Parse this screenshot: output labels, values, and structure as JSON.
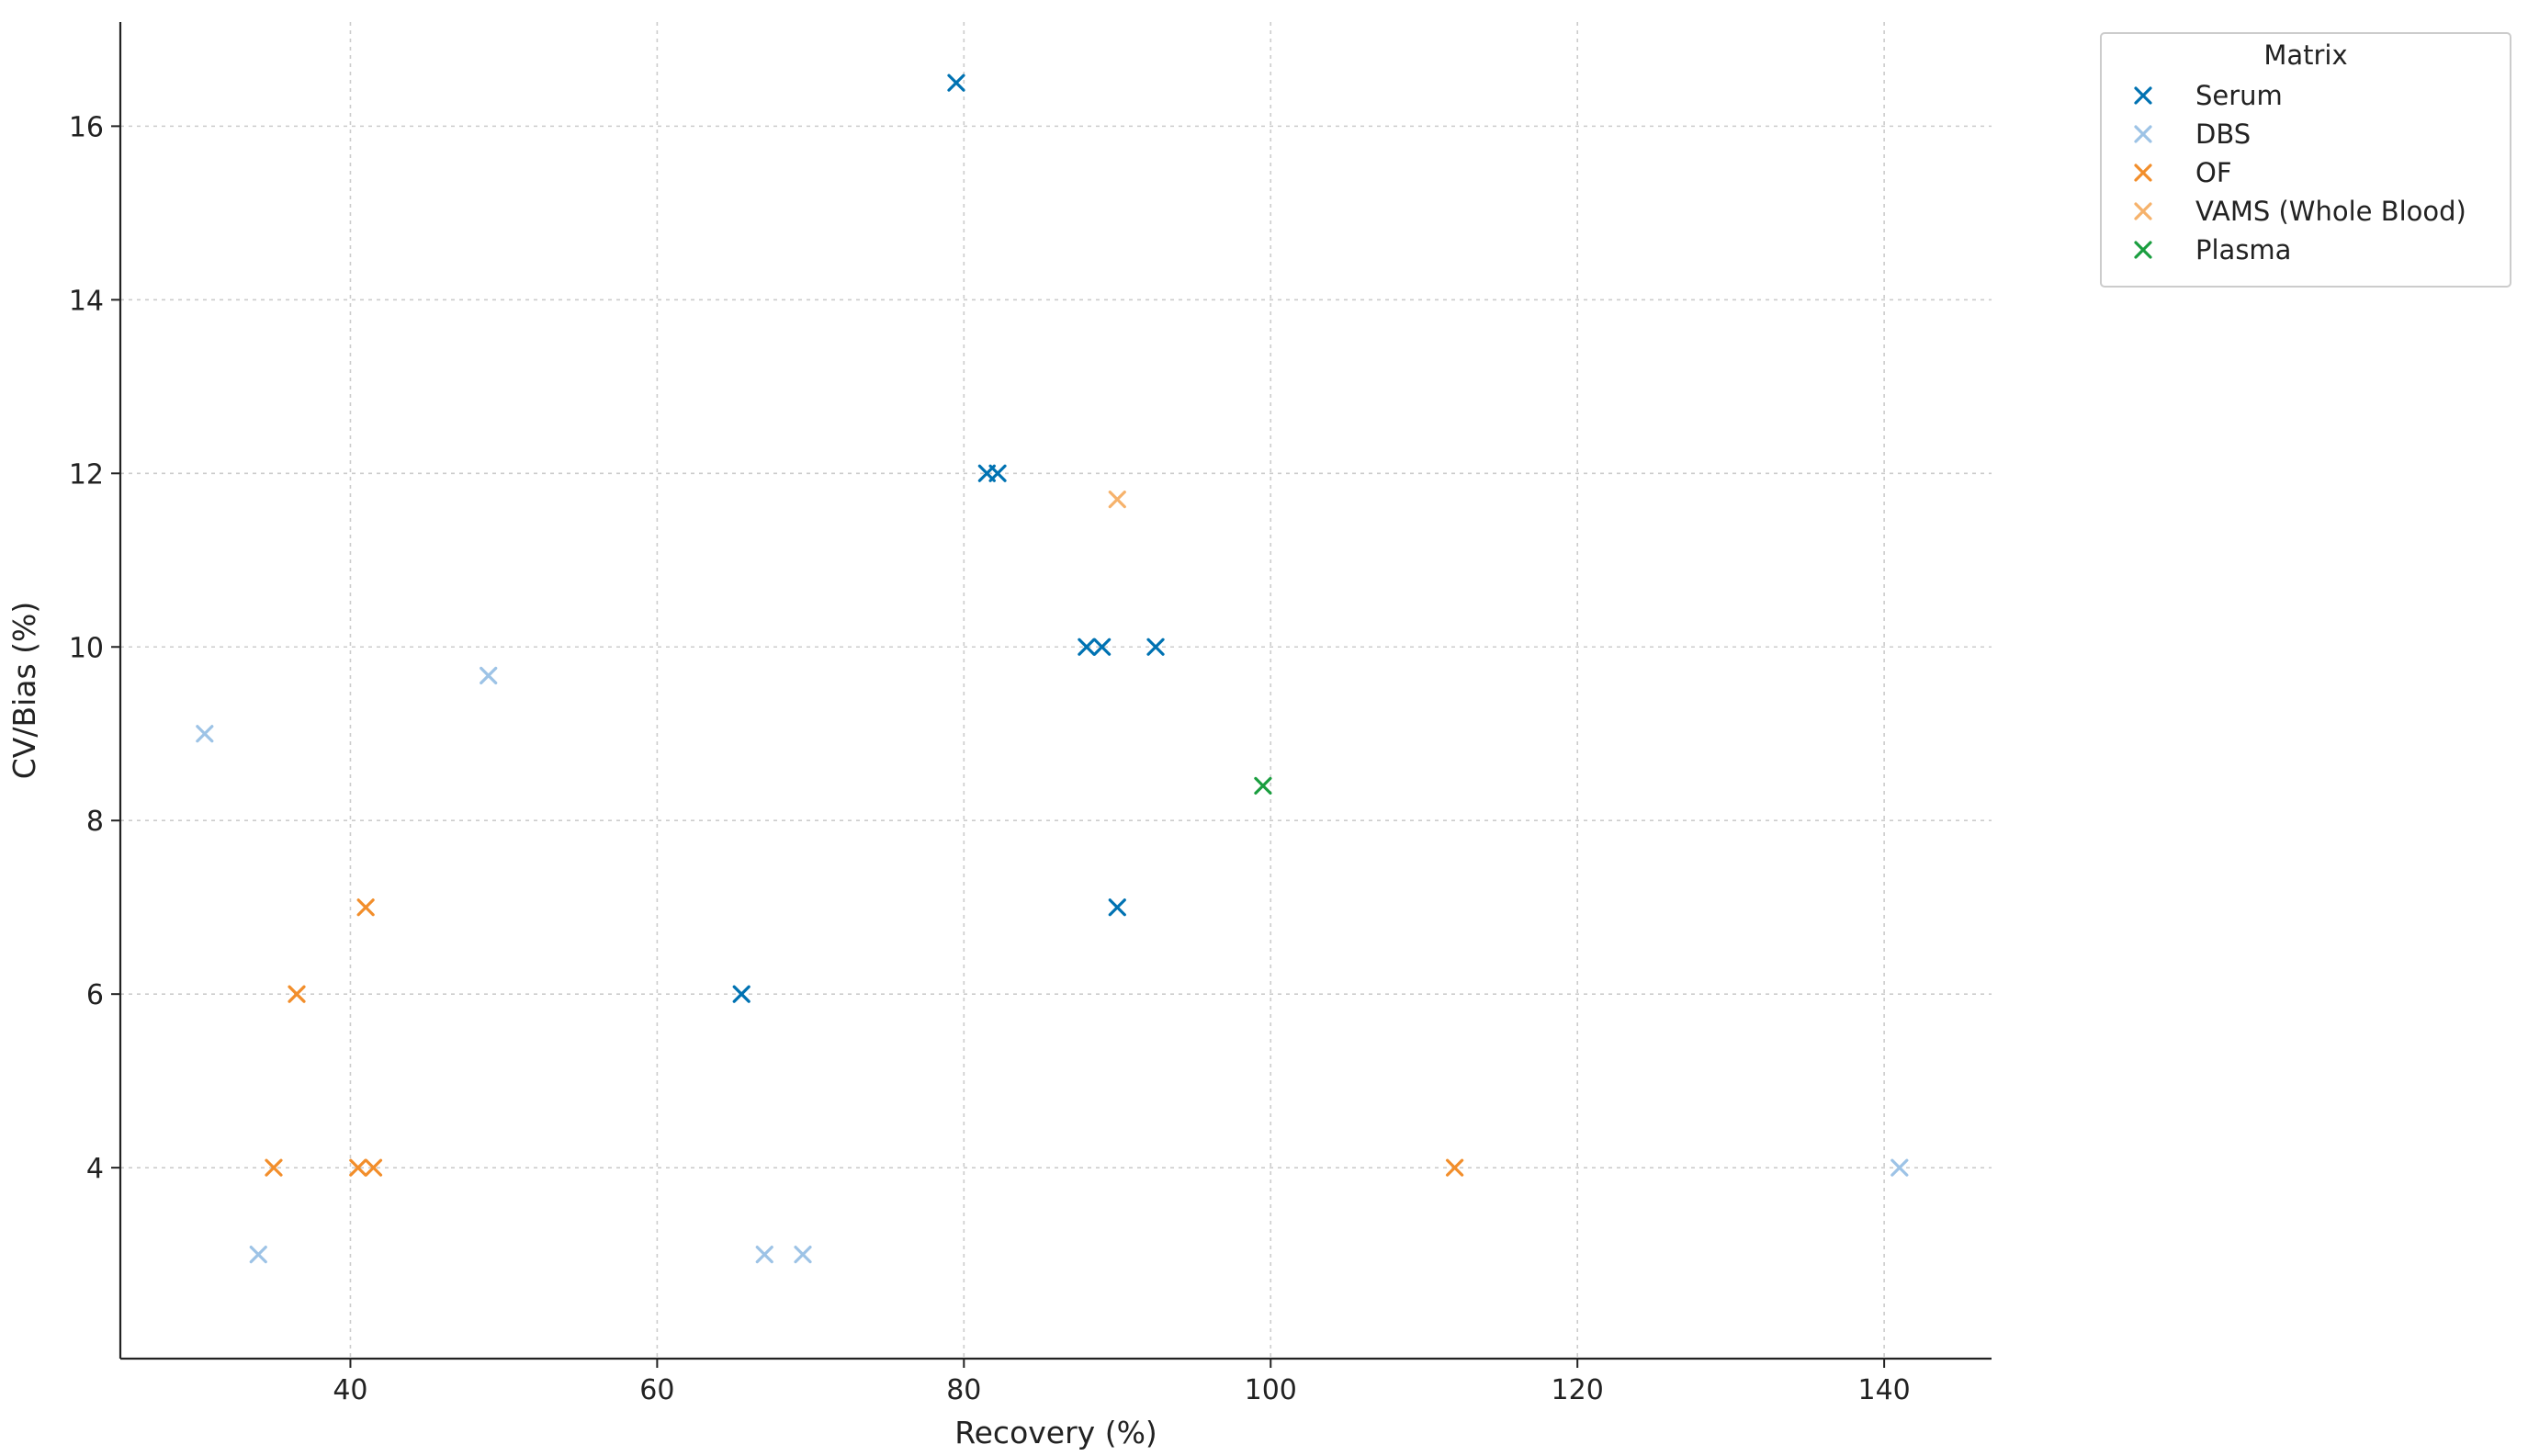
{
  "chart_data": {
    "type": "scatter",
    "title": "",
    "xlabel": "Recovery (%)",
    "ylabel": "CV/Bias (%)",
    "xlim": [
      25,
      147
    ],
    "ylim": [
      1.8,
      17.2
    ],
    "xticks": [
      40,
      60,
      80,
      100,
      120,
      140
    ],
    "yticks": [
      4,
      6,
      8,
      10,
      12,
      14,
      16
    ],
    "grid": true,
    "marker": "x",
    "legend": {
      "title": "Matrix",
      "placement": "outside-top-right"
    },
    "series": [
      {
        "name": "Serum",
        "color": "#0072B2",
        "points": [
          {
            "x": 79.5,
            "y": 16.5
          },
          {
            "x": 81.5,
            "y": 12.0
          },
          {
            "x": 82.2,
            "y": 12.0
          },
          {
            "x": 88.0,
            "y": 10.0
          },
          {
            "x": 89.0,
            "y": 10.0
          },
          {
            "x": 92.5,
            "y": 10.0
          },
          {
            "x": 90.0,
            "y": 7.0
          },
          {
            "x": 65.5,
            "y": 6.0
          }
        ]
      },
      {
        "name": "DBS",
        "color": "#9DC3E6",
        "points": [
          {
            "x": 30.5,
            "y": 9.0
          },
          {
            "x": 49.0,
            "y": 9.67
          },
          {
            "x": 34.0,
            "y": 3.0
          },
          {
            "x": 67.0,
            "y": 3.0
          },
          {
            "x": 69.5,
            "y": 3.0
          },
          {
            "x": 141.0,
            "y": 4.0
          }
        ]
      },
      {
        "name": "OF",
        "color": "#F28E2B",
        "points": [
          {
            "x": 41.0,
            "y": 7.0
          },
          {
            "x": 36.5,
            "y": 6.0
          },
          {
            "x": 35.0,
            "y": 4.0
          },
          {
            "x": 40.5,
            "y": 4.0
          },
          {
            "x": 41.5,
            "y": 4.0
          },
          {
            "x": 112.0,
            "y": 4.0
          }
        ]
      },
      {
        "name": "VAMS (Whole Blood)",
        "color": "#F6B26B",
        "points": [
          {
            "x": 90.0,
            "y": 11.7
          }
        ]
      },
      {
        "name": "Plasma",
        "color": "#1A9E3F",
        "points": [
          {
            "x": 99.5,
            "y": 8.4
          }
        ]
      }
    ]
  }
}
